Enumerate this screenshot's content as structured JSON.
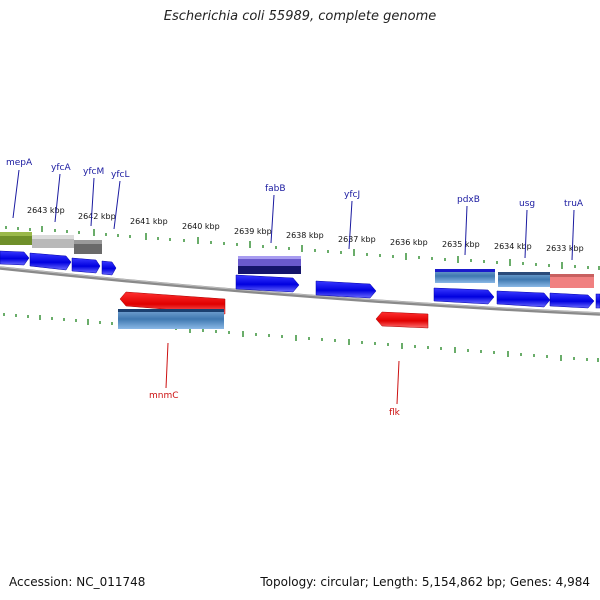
{
  "title": "Escherichia coli 55989, complete genome",
  "accession_text": "Accession: NC_011748",
  "summary_text": "Topology: circular; Length: 5,154,862 bp; Genes: 4,984",
  "colors": {
    "forward_gene": "#0000ee",
    "reverse_gene": "#ee0000",
    "backbone": "#888888",
    "ticks": "#228b22",
    "top_label": "#1a1aa0",
    "bottom_label": "#cc1111"
  },
  "scale_labels": [
    "2643 kbp",
    "2642 kbp",
    "2641 kbp",
    "2640 kbp",
    "2639 kbp",
    "2638 kbp",
    "2637 kbp",
    "2636 kbp",
    "2635 kbp",
    "2634 kbp",
    "2633 kbp"
  ],
  "top_gene_labels": [
    "mepA",
    "yfcA",
    "yfcM",
    "yfcL",
    "fabB",
    "yfcJ",
    "pdxB",
    "usg",
    "truA"
  ],
  "bottom_gene_labels": [
    "mnmC",
    "flk"
  ]
}
